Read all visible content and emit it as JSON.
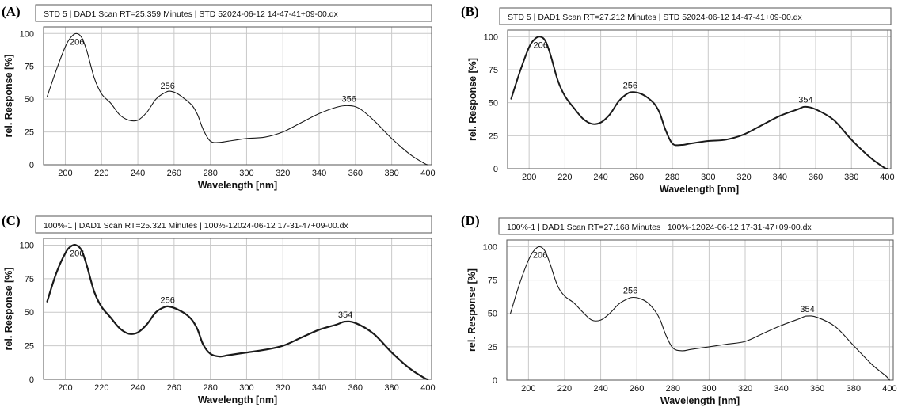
{
  "chart_data": [
    {
      "panel": "(A)",
      "type": "line",
      "title": "STD 5 | DAD1 Scan RT=25.359 Minutes | STD 52024-06-12 14-47-41+09-00.dx",
      "xlabel": "Wavelength [nm]",
      "ylabel": "rel. Response [%]",
      "xlim": [
        188,
        402
      ],
      "ylim": [
        0,
        105
      ],
      "xticks": [
        200,
        220,
        240,
        260,
        280,
        300,
        320,
        340,
        360,
        380,
        400
      ],
      "yticks": [
        0,
        25,
        50,
        75,
        100
      ],
      "grid": true,
      "peaks": [
        {
          "x": 206,
          "y": 100,
          "label": "206"
        },
        {
          "x": 256,
          "y": 55,
          "label": "256"
        },
        {
          "x": 356,
          "y": 45,
          "label": "356"
        }
      ],
      "x": [
        190,
        195,
        200,
        203,
        206,
        209,
        212,
        216,
        220,
        225,
        230,
        235,
        240,
        245,
        250,
        255,
        258,
        262,
        266,
        270,
        273,
        276,
        280,
        285,
        290,
        300,
        310,
        320,
        330,
        340,
        350,
        356,
        362,
        370,
        380,
        390,
        398,
        400
      ],
      "y": [
        52,
        72,
        90,
        97,
        100,
        97,
        86,
        66,
        54,
        47,
        38,
        34,
        34,
        40,
        50,
        55,
        56,
        54,
        50,
        45,
        38,
        27,
        18,
        17,
        18,
        20,
        21,
        25,
        32,
        39,
        44,
        45,
        43,
        34,
        20,
        8,
        1,
        0
      ]
    },
    {
      "panel": "(B)",
      "type": "line",
      "title": "STD 5 | DAD1 Scan RT=27.212 Minutes | STD 52024-06-12 14-47-41+09-00.dx",
      "xlabel": "Wavelength [nm]",
      "ylabel": "rel. Response [%]",
      "xlim": [
        188,
        402
      ],
      "ylim": [
        0,
        105
      ],
      "xticks": [
        200,
        220,
        240,
        260,
        280,
        300,
        320,
        340,
        360,
        380,
        400
      ],
      "yticks": [
        0,
        25,
        50,
        75,
        100
      ],
      "grid": true,
      "peaks": [
        {
          "x": 206,
          "y": 100,
          "label": "206"
        },
        {
          "x": 256,
          "y": 58,
          "label": "256"
        },
        {
          "x": 354,
          "y": 47,
          "label": "354"
        }
      ],
      "x": [
        190,
        195,
        200,
        203,
        206,
        209,
        212,
        216,
        220,
        225,
        230,
        235,
        240,
        245,
        250,
        255,
        258,
        262,
        266,
        270,
        273,
        276,
        280,
        285,
        290,
        300,
        310,
        320,
        330,
        340,
        350,
        354,
        360,
        370,
        380,
        390,
        398,
        400
      ],
      "y": [
        53,
        74,
        92,
        98,
        100,
        97,
        86,
        67,
        55,
        46,
        38,
        34,
        35,
        41,
        51,
        57,
        58,
        57,
        54,
        49,
        42,
        30,
        19,
        18,
        19,
        21,
        22,
        26,
        33,
        40,
        45,
        47,
        45,
        37,
        22,
        9,
        1,
        0
      ]
    },
    {
      "panel": "(C)",
      "type": "line",
      "title": "100%-1 | DAD1 Scan RT=25.321 Minutes | 100%-12024-06-12 17-31-47+09-00.dx",
      "xlabel": "Wavelength [nm]",
      "ylabel": "rel. Response [%]",
      "xlim": [
        188,
        402
      ],
      "ylim": [
        0,
        105
      ],
      "xticks": [
        200,
        220,
        240,
        260,
        280,
        300,
        320,
        340,
        360,
        380,
        400
      ],
      "yticks": [
        0,
        25,
        50,
        75,
        100
      ],
      "grid": true,
      "peaks": [
        {
          "x": 206,
          "y": 100,
          "label": "206"
        },
        {
          "x": 256,
          "y": 54,
          "label": "256"
        },
        {
          "x": 354,
          "y": 43,
          "label": "354"
        }
      ],
      "x": [
        190,
        195,
        200,
        203,
        206,
        209,
        212,
        216,
        220,
        225,
        230,
        235,
        240,
        245,
        250,
        255,
        258,
        262,
        266,
        270,
        273,
        276,
        280,
        285,
        290,
        300,
        310,
        320,
        330,
        340,
        350,
        354,
        360,
        370,
        380,
        390,
        398,
        400
      ],
      "y": [
        58,
        79,
        94,
        99,
        100,
        96,
        84,
        65,
        54,
        46,
        38,
        34,
        35,
        41,
        50,
        54,
        54,
        52,
        49,
        44,
        37,
        26,
        19,
        17,
        18,
        20,
        22,
        25,
        31,
        37,
        41,
        43,
        42,
        34,
        20,
        8,
        1,
        0
      ]
    },
    {
      "panel": "(D)",
      "type": "line",
      "title": "100%-1 | DAD1 Scan RT=27.168 Minutes | 100%-12024-06-12 17-31-47+09-00.dx",
      "xlabel": "Wavelength [nm]",
      "ylabel": "rel. Response [%]",
      "xlim": [
        188,
        402
      ],
      "ylim": [
        0,
        105
      ],
      "xticks": [
        200,
        220,
        240,
        260,
        280,
        300,
        320,
        340,
        360,
        380,
        400
      ],
      "yticks": [
        0,
        25,
        50,
        75,
        100
      ],
      "grid": true,
      "peaks": [
        {
          "x": 206,
          "y": 100,
          "label": "206"
        },
        {
          "x": 256,
          "y": 62,
          "label": "256"
        },
        {
          "x": 354,
          "y": 48,
          "label": "354"
        }
      ],
      "x": [
        190,
        195,
        200,
        203,
        206,
        209,
        212,
        216,
        220,
        225,
        230,
        235,
        240,
        245,
        250,
        255,
        258,
        262,
        266,
        270,
        273,
        276,
        280,
        285,
        290,
        300,
        310,
        320,
        330,
        340,
        350,
        354,
        360,
        370,
        380,
        390,
        398,
        400
      ],
      "y": [
        50,
        72,
        90,
        97,
        100,
        97,
        87,
        71,
        63,
        58,
        51,
        45,
        45,
        50,
        57,
        61,
        62,
        61,
        58,
        52,
        45,
        34,
        24,
        22,
        23,
        25,
        27,
        29,
        35,
        41,
        46,
        48,
        47,
        40,
        26,
        12,
        3,
        0
      ]
    }
  ]
}
